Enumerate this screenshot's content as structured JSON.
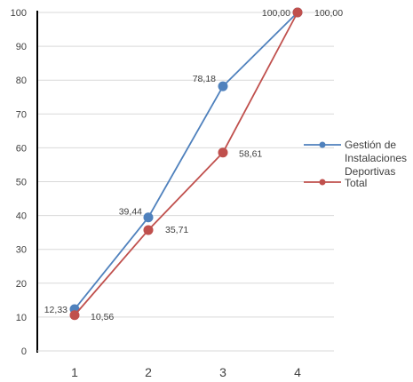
{
  "chart_data": {
    "type": "line",
    "categories": [
      "1",
      "2",
      "3",
      "4"
    ],
    "series": [
      {
        "name": "Gestión de Instalaciones Deportivas",
        "legend_lines": [
          "Gestión de",
          "Instalaciones",
          "Deportivas"
        ],
        "values": [
          12.33,
          39.44,
          78.18,
          100.0
        ],
        "labels": [
          "12,33",
          "39,44",
          "78,18",
          "100,00"
        ],
        "color": "#4f81bd"
      },
      {
        "name": "Total",
        "legend_lines": [
          "Total"
        ],
        "values": [
          10.56,
          35.71,
          58.61,
          100.0
        ],
        "labels": [
          "10,56",
          "35,71",
          "58,61",
          "100,00"
        ],
        "color": "#c0504d"
      }
    ],
    "ylim": [
      0,
      100
    ],
    "yticks": [
      "0",
      "10",
      "20",
      "30",
      "40",
      "50",
      "60",
      "70",
      "80",
      "90",
      "100"
    ],
    "grid": true,
    "legend_position": "right",
    "title": "",
    "xlabel": "",
    "ylabel": ""
  }
}
